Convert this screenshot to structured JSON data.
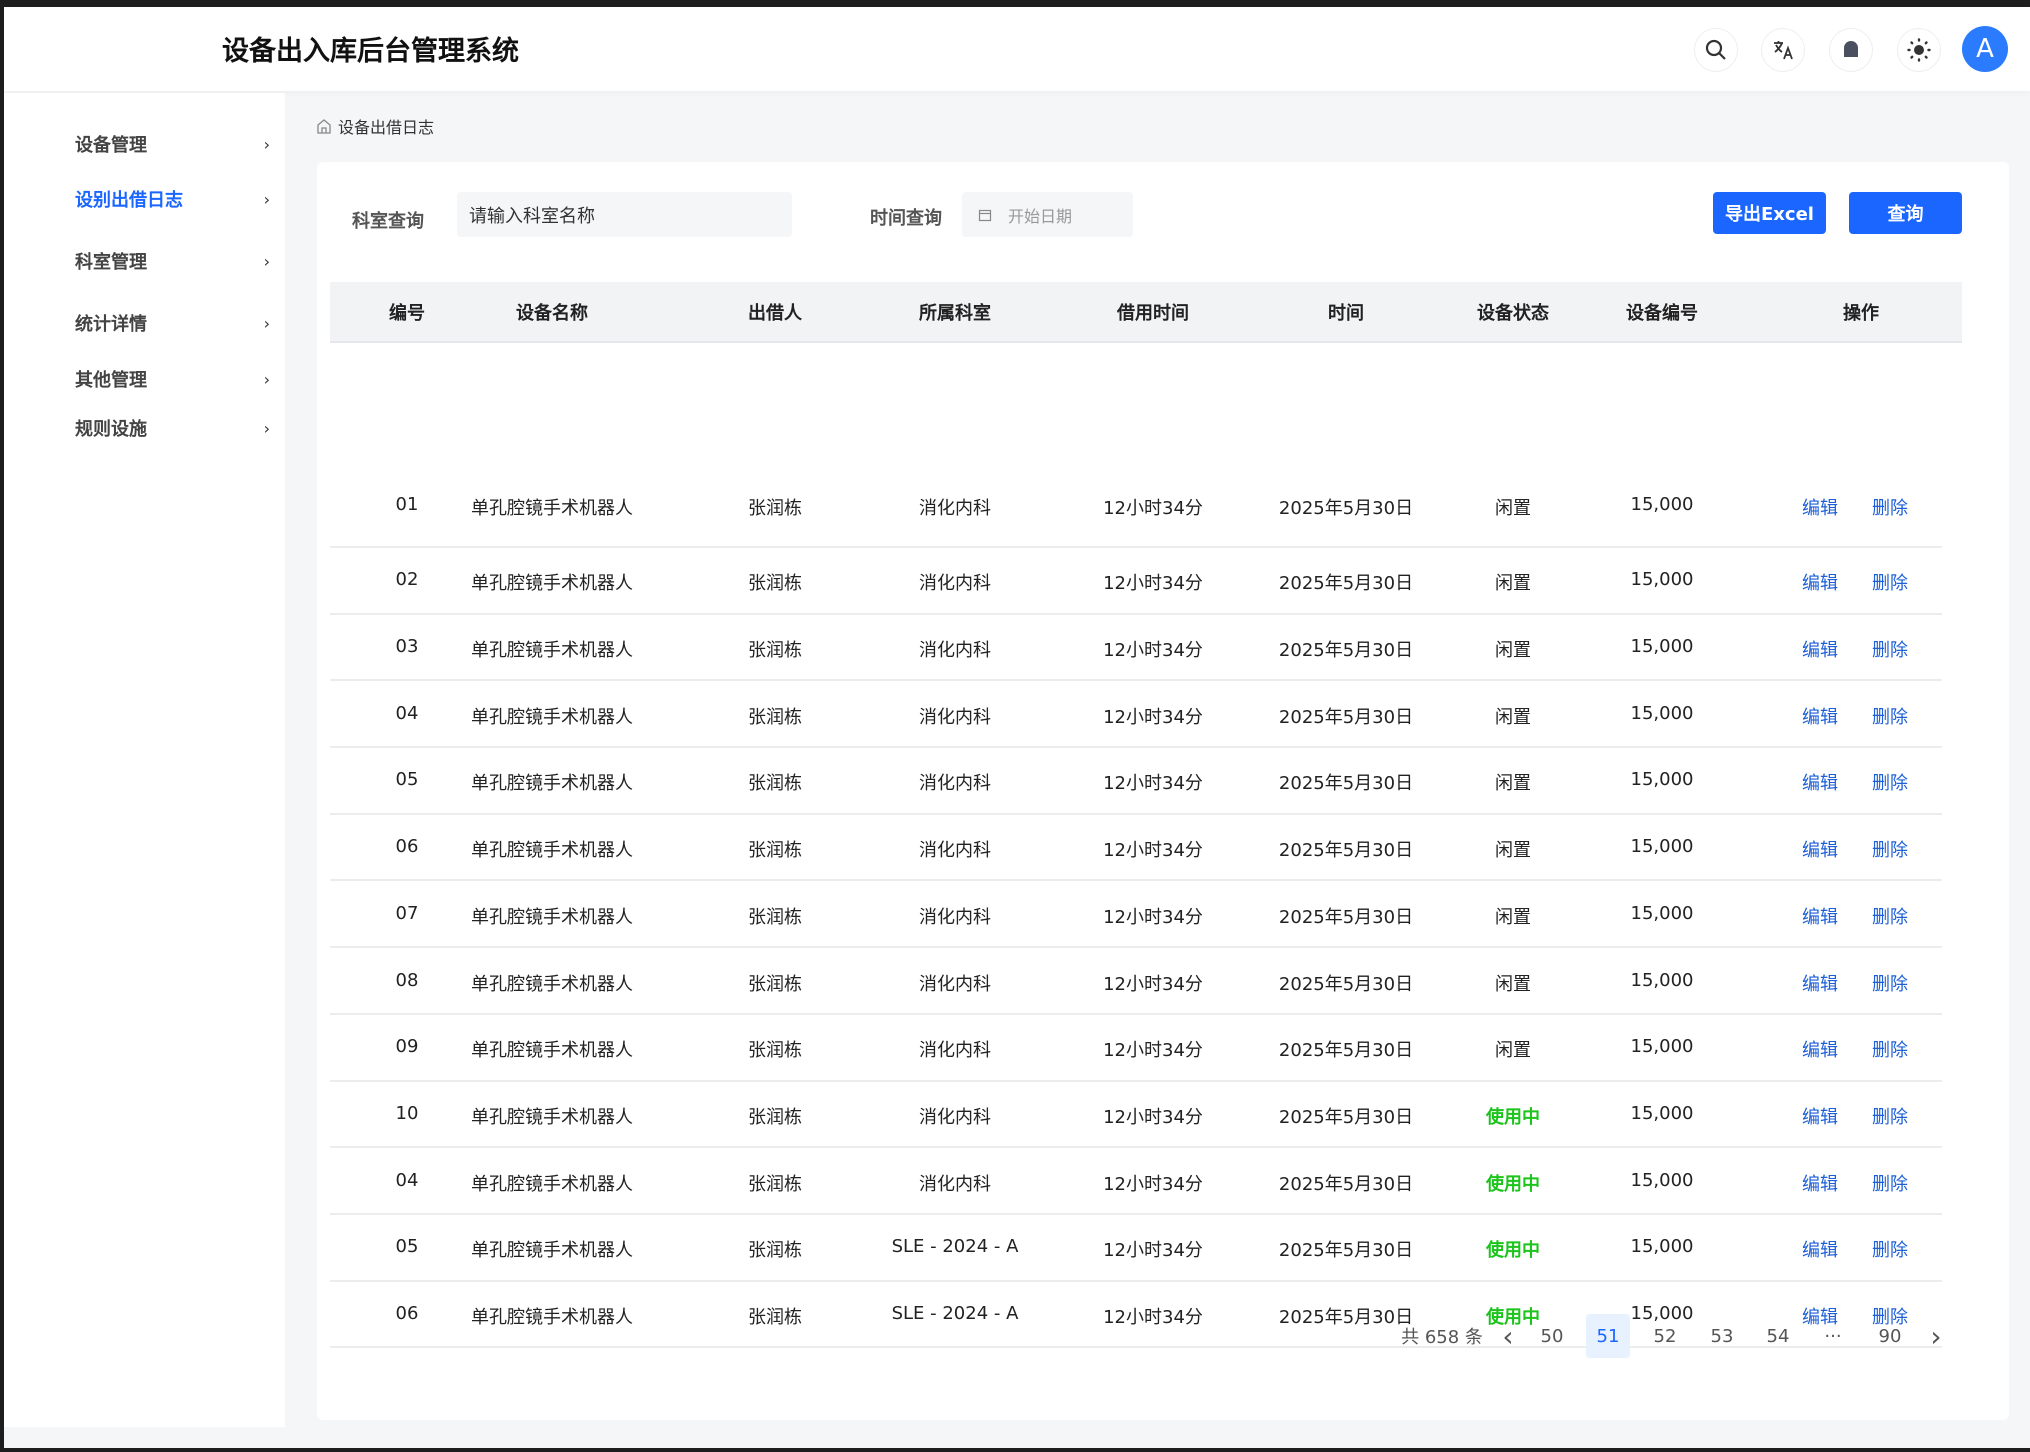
{
  "header": {
    "title": "设备出入库后台管理系统",
    "avatar_letter": "A",
    "icons": [
      "search-icon",
      "translate-icon",
      "bell-icon",
      "theme-sun-icon"
    ]
  },
  "sidebar": {
    "items": [
      {
        "label": "设备管理",
        "active": false
      },
      {
        "label": "设别出借日志",
        "active": true
      },
      {
        "label": "科室管理",
        "active": false
      },
      {
        "label": "统计详情",
        "active": false
      },
      {
        "label": "其他管理",
        "active": false
      },
      {
        "label": "规则设施",
        "active": false
      }
    ]
  },
  "breadcrumb": {
    "label": "设备出借日志"
  },
  "filters": {
    "dept_label": "科室查询",
    "dept_placeholder": "请输入科室名称",
    "time_label": "时间查询",
    "date_placeholder": "开始日期",
    "export_label": "导出Excel",
    "query_label": "查询"
  },
  "table": {
    "columns": [
      "编号",
      "设备名称",
      "出借人",
      "所属科室",
      "借用时间",
      "时间",
      "设备状态",
      "设备编号",
      "操作"
    ],
    "edit_label": "编辑",
    "delete_label": "删除",
    "status_colors": {
      "闲置": "#222222",
      "使用中": "#1cc41c"
    },
    "rows": [
      [
        "01",
        "单孔腔镜手术机器人",
        "张润栋",
        "消化内科",
        "12小时34分",
        "2025年5月30日",
        "闲置",
        "15,000"
      ],
      [
        "02",
        "单孔腔镜手术机器人",
        "张润栋",
        "消化内科",
        "12小时34分",
        "2025年5月30日",
        "闲置",
        "15,000"
      ],
      [
        "03",
        "单孔腔镜手术机器人",
        "张润栋",
        "消化内科",
        "12小时34分",
        "2025年5月30日",
        "闲置",
        "15,000"
      ],
      [
        "04",
        "单孔腔镜手术机器人",
        "张润栋",
        "消化内科",
        "12小时34分",
        "2025年5月30日",
        "闲置",
        "15,000"
      ],
      [
        "05",
        "单孔腔镜手术机器人",
        "张润栋",
        "消化内科",
        "12小时34分",
        "2025年5月30日",
        "闲置",
        "15,000"
      ],
      [
        "06",
        "单孔腔镜手术机器人",
        "张润栋",
        "消化内科",
        "12小时34分",
        "2025年5月30日",
        "闲置",
        "15,000"
      ],
      [
        "07",
        "单孔腔镜手术机器人",
        "张润栋",
        "消化内科",
        "12小时34分",
        "2025年5月30日",
        "闲置",
        "15,000"
      ],
      [
        "08",
        "单孔腔镜手术机器人",
        "张润栋",
        "消化内科",
        "12小时34分",
        "2025年5月30日",
        "闲置",
        "15,000"
      ],
      [
        "09",
        "单孔腔镜手术机器人",
        "张润栋",
        "消化内科",
        "12小时34分",
        "2025年5月30日",
        "闲置",
        "15,000"
      ],
      [
        "10",
        "单孔腔镜手术机器人",
        "张润栋",
        "消化内科",
        "12小时34分",
        "2025年5月30日",
        "使用中",
        "15,000"
      ],
      [
        "04",
        "单孔腔镜手术机器人",
        "张润栋",
        "消化内科",
        "12小时34分",
        "2025年5月30日",
        "使用中",
        "15,000"
      ],
      [
        "05",
        "单孔腔镜手术机器人",
        "张润栋",
        "SLE - 2024 - A",
        "12小时34分",
        "2025年5月30日",
        "使用中",
        "15,000"
      ],
      [
        "06",
        "单孔腔镜手术机器人",
        "张润栋",
        "SLE - 2024 - A",
        "12小时34分",
        "2025年5月30日",
        "使用中",
        "15,000"
      ]
    ]
  },
  "pagination": {
    "total_label": "共 658 条",
    "pages": [
      "50",
      "51",
      "52",
      "53",
      "54",
      "···",
      "90"
    ],
    "current": "51"
  },
  "colors": {
    "primary": "#1a66ff",
    "link": "#1d5fd6",
    "in_use": "#1cc41c"
  }
}
